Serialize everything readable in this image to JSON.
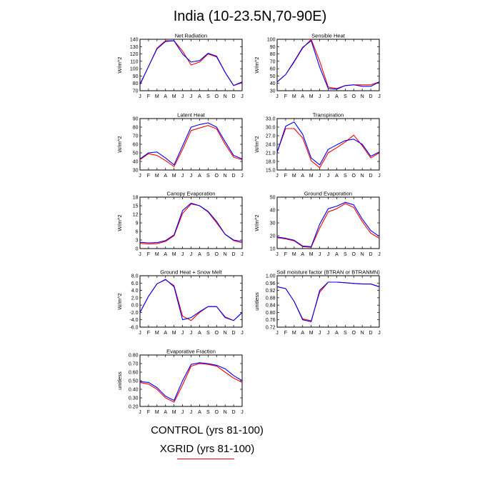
{
  "title": "India (10-23.5N,70-90E)",
  "legend": {
    "control": {
      "label": "CONTROL (yrs 81-100)",
      "color": "#0000ff"
    },
    "xgrid": {
      "label": "XGRID (yrs 81-100)",
      "color": "#ff0000"
    }
  },
  "months": [
    "J",
    "F",
    "M",
    "A",
    "M",
    "J",
    "J",
    "A",
    "S",
    "O",
    "N",
    "D",
    "J"
  ],
  "chart_data": [
    {
      "type": "line",
      "title": "Net Radiation",
      "ylabel": "W/m^2",
      "ylim": [
        70,
        140
      ],
      "yticks": [
        "70",
        "80",
        "90",
        "100",
        "110",
        "120",
        "130",
        "140"
      ],
      "series": [
        {
          "name": "CONTROL (yrs 81-100)",
          "values": [
            79,
            103,
            127,
            137,
            138,
            120,
            109,
            111,
            121,
            117,
            95,
            77,
            82
          ]
        },
        {
          "name": "XGRID (yrs 81-100)",
          "values": [
            78,
            103,
            128,
            138,
            138,
            124,
            105,
            109,
            120,
            116,
            95,
            77,
            81
          ]
        }
      ]
    },
    {
      "type": "line",
      "title": "Sensible Heat",
      "ylabel": "W/m^2",
      "ylim": [
        30,
        100
      ],
      "yticks": [
        "30",
        "40",
        "50",
        "60",
        "70",
        "80",
        "90",
        "100"
      ],
      "series": [
        {
          "name": "CONTROL (yrs 81-100)",
          "values": [
            42,
            52,
            70,
            89,
            98,
            62,
            33,
            32,
            37,
            38,
            36,
            36,
            42
          ]
        },
        {
          "name": "XGRID (yrs 81-100)",
          "values": [
            42,
            52,
            69,
            88,
            100,
            70,
            35,
            33,
            37,
            38,
            38,
            38,
            42
          ]
        }
      ]
    },
    {
      "type": "line",
      "title": "Latent Heat",
      "ylabel": "W/m^2",
      "ylim": [
        30,
        90
      ],
      "yticks": [
        "30",
        "40",
        "50",
        "60",
        "70",
        "80",
        "90"
      ],
      "series": [
        {
          "name": "CONTROL (yrs 81-100)",
          "values": [
            43,
            50,
            51,
            44,
            36,
            58,
            80,
            83,
            85,
            80,
            63,
            47,
            43
          ]
        },
        {
          "name": "XGRID (yrs 81-100)",
          "values": [
            42,
            49,
            47,
            41,
            34,
            54,
            76,
            79,
            82,
            78,
            60,
            45,
            42
          ]
        }
      ]
    },
    {
      "type": "line",
      "title": "Transpiration",
      "ylabel": "W/m^2",
      "ylim": [
        15,
        33
      ],
      "yticks": [
        "15.0",
        "18.0",
        "21.0",
        "24.0",
        "27.0",
        "30.0",
        "33.0"
      ],
      "series": [
        {
          "name": "CONTROL (yrs 81-100)",
          "values": [
            21.2,
            30.3,
            31.8,
            27.5,
            19.2,
            16.8,
            22.2,
            23.8,
            25.3,
            25.8,
            24,
            19.8,
            21.3
          ]
        },
        {
          "name": "XGRID (yrs 81-100)",
          "values": [
            21.2,
            29.5,
            29.5,
            26.2,
            18.2,
            15.8,
            21,
            22.8,
            24.8,
            27.2,
            23.5,
            19.2,
            21
          ]
        }
      ]
    },
    {
      "type": "line",
      "title": "Canopy Evaporation",
      "ylabel": "W/m^2",
      "ylim": [
        0,
        18
      ],
      "yticks": [
        "0",
        "3",
        "6",
        "9",
        "12",
        "15",
        "18"
      ],
      "series": [
        {
          "name": "CONTROL (yrs 81-100)",
          "values": [
            2.2,
            2.0,
            2.1,
            2.8,
            4.8,
            13.3,
            15.9,
            15,
            13,
            9.5,
            5,
            3,
            2.5
          ]
        },
        {
          "name": "XGRID (yrs 81-100)",
          "values": [
            1.8,
            1.6,
            1.7,
            2.5,
            4.5,
            12.3,
            15.6,
            15,
            12.8,
            9,
            5,
            2.8,
            2
          ]
        }
      ]
    },
    {
      "type": "line",
      "title": "Ground Evaporation",
      "ylabel": "W/m^2",
      "ylim": [
        10,
        50
      ],
      "yticks": [
        "10",
        "20",
        "30",
        "40",
        "50"
      ],
      "series": [
        {
          "name": "CONTROL (yrs 81-100)",
          "values": [
            19,
            18,
            16.5,
            12,
            11.5,
            29,
            41,
            43,
            46,
            44,
            33,
            24,
            19.5
          ]
        },
        {
          "name": "XGRID (yrs 81-100)",
          "values": [
            18.5,
            17.5,
            16,
            11.5,
            11,
            26,
            38.5,
            41,
            45,
            42,
            31,
            22,
            18
          ]
        }
      ]
    },
    {
      "type": "line",
      "title": "Ground Heat + Snow Melt",
      "ylabel": "W/m^2",
      "ylim": [
        -6,
        8
      ],
      "yticks": [
        "-6.0",
        "-4.0",
        "-2.0",
        "0.0",
        "2.0",
        "4.0",
        "6.0",
        "8.0"
      ],
      "series": [
        {
          "name": "CONTROL (yrs 81-100)",
          "values": [
            -2,
            2.4,
            5.8,
            7,
            5,
            -4,
            -3.4,
            -1.8,
            -0.4,
            -0.4,
            -3.4,
            -4.2,
            -2
          ]
        },
        {
          "name": "XGRID (yrs 81-100)",
          "values": [
            -2,
            2.4,
            5.8,
            6.9,
            5.3,
            -3,
            -4.2,
            -2,
            -0.4,
            -0.4,
            -3.2,
            -4.2,
            -2
          ]
        }
      ]
    },
    {
      "type": "line",
      "title": "Soil moisture factor (BTRAN or BTRANMN)",
      "ylabel": "unitless",
      "ylim": [
        0.72,
        1.0
      ],
      "yticks": [
        "0.72",
        "0.76",
        "0.80",
        "0.84",
        "0.88",
        "0.92",
        "0.96",
        "1.00"
      ],
      "series": [
        {
          "name": "CONTROL (yrs 81-100)",
          "values": [
            0.94,
            0.93,
            0.86,
            0.76,
            0.75,
            0.92,
            0.965,
            0.965,
            0.962,
            0.958,
            0.955,
            0.955,
            0.94
          ]
        },
        {
          "name": "XGRID (yrs 81-100)",
          "values": [
            0.94,
            0.93,
            0.86,
            0.765,
            0.755,
            0.91,
            0.965,
            0.965,
            0.962,
            0.958,
            0.955,
            0.955,
            0.94
          ]
        }
      ]
    },
    {
      "type": "line",
      "title": "Evaporative Fraction",
      "ylabel": "unitless",
      "ylim": [
        0.2,
        0.8
      ],
      "yticks": [
        "0.20",
        "0.30",
        "0.40",
        "0.50",
        "0.60",
        "0.70",
        "0.80"
      ],
      "series": [
        {
          "name": "CONTROL (yrs 81-100)",
          "values": [
            0.49,
            0.48,
            0.42,
            0.32,
            0.27,
            0.5,
            0.69,
            0.71,
            0.7,
            0.68,
            0.64,
            0.56,
            0.5
          ]
        },
        {
          "name": "XGRID (yrs 81-100)",
          "values": [
            0.48,
            0.46,
            0.4,
            0.3,
            0.25,
            0.45,
            0.67,
            0.7,
            0.69,
            0.67,
            0.6,
            0.53,
            0.48
          ]
        }
      ]
    }
  ]
}
